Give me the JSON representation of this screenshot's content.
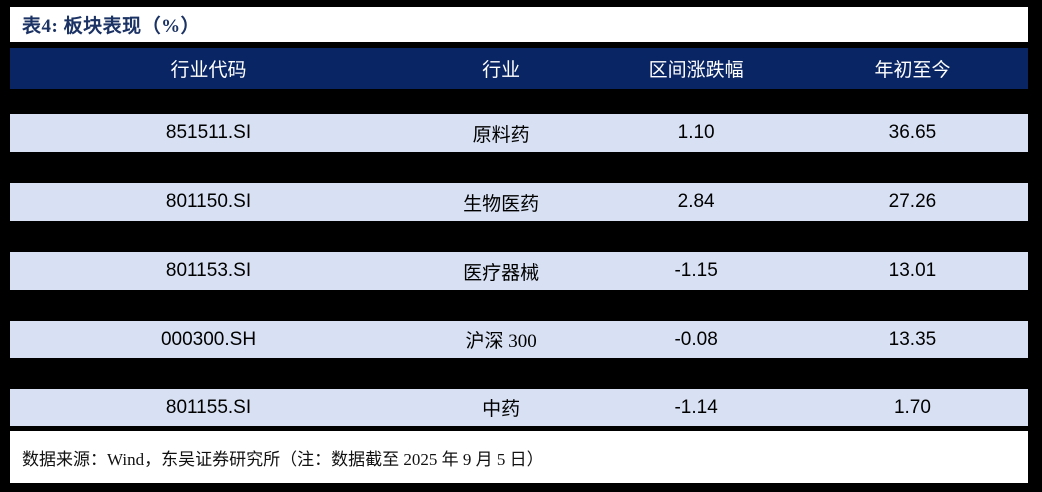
{
  "table": {
    "title": "表4: 板块表现（%）",
    "columns": [
      "行业代码",
      "行业",
      "区间涨跌幅",
      "年初至今"
    ],
    "rows": [
      {
        "code": "851511.SI",
        "industry": "原料药",
        "interval_change": "1.10",
        "ytd": "36.65"
      },
      {
        "code": "801150.SI",
        "industry": "生物医药",
        "interval_change": "2.84",
        "ytd": "27.26"
      },
      {
        "code": "801153.SI",
        "industry": "医疗器械",
        "interval_change": "-1.15",
        "ytd": "13.01"
      },
      {
        "code": "000300.SH",
        "industry": "沪深 300",
        "interval_change": "-0.08",
        "ytd": "13.35"
      },
      {
        "code": "801155.SI",
        "industry": "中药",
        "interval_change": "-1.14",
        "ytd": "1.70"
      }
    ],
    "source_note": "数据来源：Wind，东吴证券研究所（注：数据截至 2025 年 9 月 5 日）"
  },
  "colors": {
    "header_bg": "#0a2564",
    "row_bg": "#d8e1f3",
    "title_color": "#1b3264",
    "gap_bg": "#000000"
  }
}
